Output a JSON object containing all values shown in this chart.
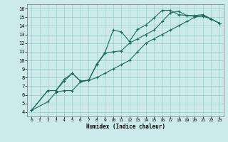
{
  "xlabel": "Humidex (Indice chaleur)",
  "bg_color": "#cceaea",
  "grid_color": "#99cccc",
  "line_color": "#1a6b5a",
  "xlim": [
    -0.5,
    23.5
  ],
  "ylim": [
    3.5,
    16.5
  ],
  "xticks": [
    0,
    1,
    2,
    3,
    4,
    5,
    6,
    7,
    8,
    9,
    10,
    11,
    12,
    13,
    14,
    15,
    16,
    17,
    18,
    19,
    20,
    21,
    22,
    23
  ],
  "yticks": [
    4,
    5,
    6,
    7,
    8,
    9,
    10,
    11,
    12,
    13,
    14,
    15,
    16
  ],
  "curve1_x": [
    0,
    2,
    3,
    4,
    5,
    6,
    7,
    8,
    9,
    10,
    11,
    12,
    13,
    14,
    15,
    16,
    17,
    18,
    19,
    20,
    21,
    22,
    23
  ],
  "curve1_y": [
    4.2,
    6.5,
    6.5,
    7.8,
    8.5,
    7.6,
    7.7,
    9.6,
    10.9,
    13.5,
    13.3,
    12.2,
    13.6,
    14.1,
    14.9,
    15.8,
    15.8,
    15.3,
    15.2,
    15.1,
    15.1,
    14.8,
    14.3
  ],
  "curve2_x": [
    0,
    2,
    3,
    4,
    5,
    6,
    7,
    8,
    9,
    10,
    11,
    12,
    13,
    14,
    15,
    16,
    17,
    18,
    19,
    20,
    21,
    22,
    23
  ],
  "curve2_y": [
    4.2,
    6.5,
    6.5,
    7.6,
    8.5,
    7.6,
    7.7,
    9.5,
    10.8,
    11.0,
    11.1,
    12.0,
    12.5,
    13.0,
    13.5,
    14.5,
    15.5,
    15.7,
    15.2,
    15.2,
    15.3,
    14.8,
    14.3
  ],
  "curve3_x": [
    0,
    2,
    3,
    4,
    5,
    6,
    7,
    8,
    9,
    10,
    11,
    12,
    13,
    14,
    15,
    16,
    17,
    18,
    19,
    20,
    21,
    22,
    23
  ],
  "curve3_y": [
    4.2,
    5.2,
    6.3,
    6.5,
    6.5,
    7.5,
    7.7,
    8.0,
    8.5,
    9.0,
    9.5,
    10.0,
    11.0,
    12.0,
    12.5,
    13.0,
    13.5,
    14.0,
    14.5,
    15.0,
    15.2,
    14.8,
    14.3
  ]
}
